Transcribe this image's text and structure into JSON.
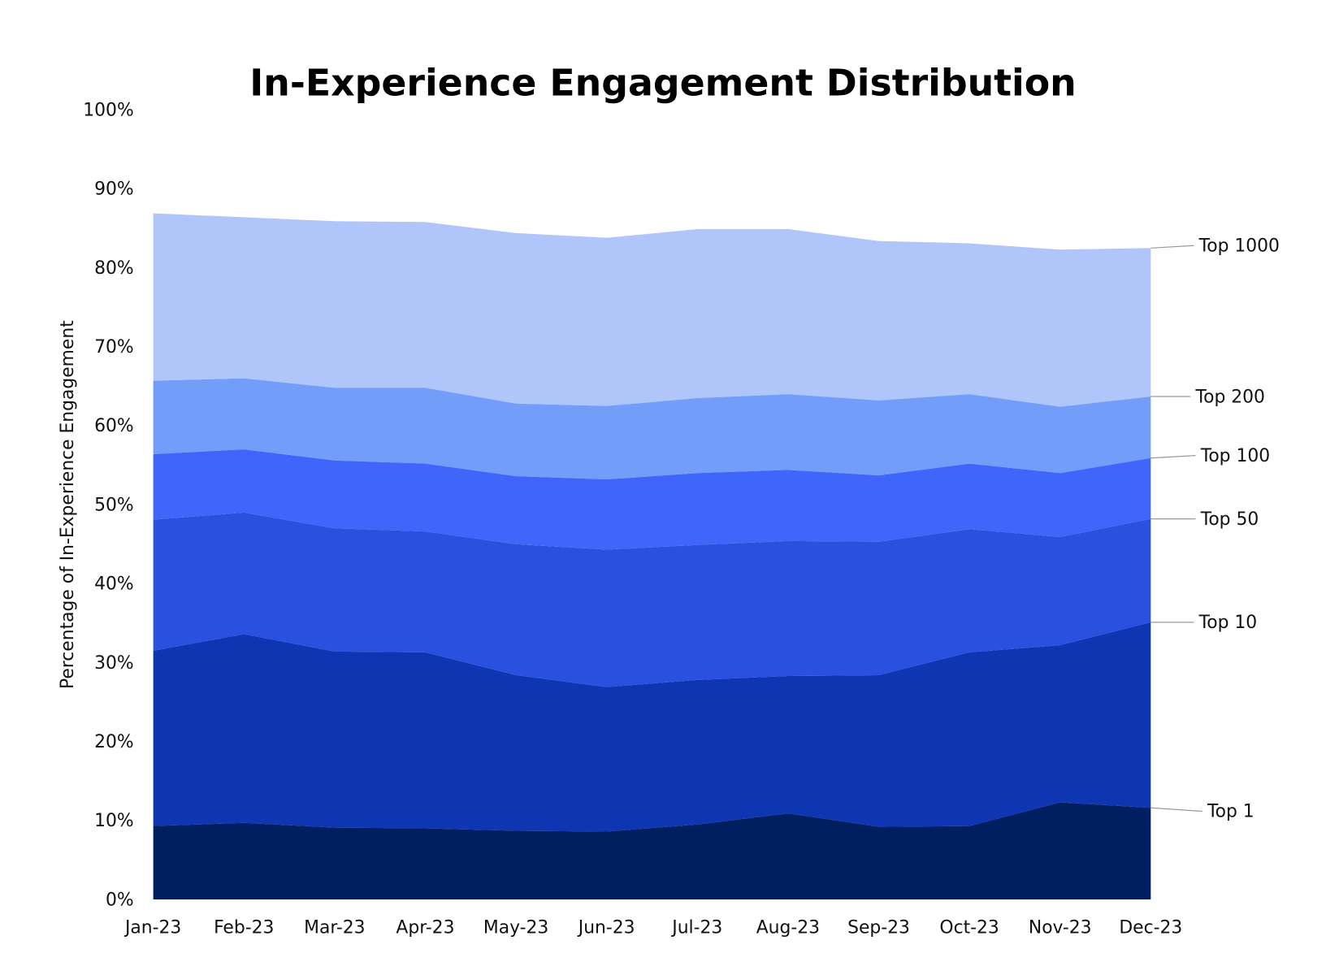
{
  "chart_data": {
    "type": "area",
    "stacked": true,
    "title": "In-Experience Engagement Distribution",
    "xlabel": "",
    "ylabel": "Percentage of In-Experience Engagement",
    "ylim": [
      0,
      100
    ],
    "yticks": [
      "0%",
      "10%",
      "20%",
      "30%",
      "40%",
      "50%",
      "60%",
      "70%",
      "80%",
      "90%",
      "100%"
    ],
    "grid": false,
    "legend": "direct labels at right",
    "categories": [
      "Jan-23",
      "Feb-23",
      "Mar-23",
      "Apr-23",
      "May-23",
      "Jun-23",
      "Jul-23",
      "Aug-23",
      "Sep-23",
      "Oct-23",
      "Nov-23",
      "Dec-23"
    ],
    "series_note_cumulative": "values are cumulative share (top of each band)",
    "series": [
      {
        "name": "Top 1",
        "color": "#001F60",
        "values": [
          9.3,
          9.7,
          9.1,
          9.0,
          8.7,
          8.6,
          9.5,
          10.9,
          9.2,
          9.3,
          12.3,
          11.6
        ]
      },
      {
        "name": "Top 10",
        "color": "#0E36B3",
        "values": [
          31.5,
          33.6,
          31.4,
          31.3,
          28.4,
          26.9,
          27.8,
          28.3,
          28.4,
          31.3,
          32.2,
          35.1
        ]
      },
      {
        "name": "Top 50",
        "color": "#2A50E0",
        "values": [
          48.1,
          49.0,
          47.0,
          46.6,
          45.0,
          44.3,
          44.9,
          45.4,
          45.3,
          46.9,
          45.9,
          48.2
        ]
      },
      {
        "name": "Top 100",
        "color": "#3F65FB",
        "values": [
          56.4,
          57.0,
          55.6,
          55.2,
          53.6,
          53.2,
          54.0,
          54.4,
          53.7,
          55.2,
          54.0,
          55.9
        ]
      },
      {
        "name": "Top 200",
        "color": "#729EFA",
        "values": [
          65.7,
          66.0,
          64.8,
          64.8,
          62.8,
          62.5,
          63.5,
          64.0,
          63.2,
          64.0,
          62.4,
          63.7
        ]
      },
      {
        "name": "Top 1000",
        "color": "#B0C6FA",
        "values": [
          86.9,
          86.4,
          85.9,
          85.8,
          84.4,
          83.8,
          84.9,
          84.9,
          83.4,
          83.1,
          82.3,
          82.5
        ]
      }
    ]
  }
}
